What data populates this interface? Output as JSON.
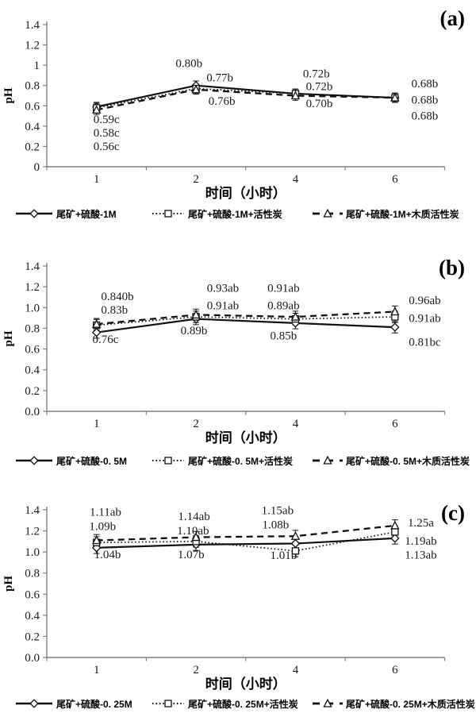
{
  "figure_title": "",
  "chart_data": [
    {
      "type": "line",
      "panel_label": "(a)",
      "xlabel": "时间（小时）",
      "ylabel": "pH",
      "x_categories": [
        "1",
        "2",
        "4",
        "6"
      ],
      "y_tick_labels": [
        "1.4",
        "1.2",
        "1",
        "0.8",
        "0.6",
        "0.4",
        "0.2",
        "0"
      ],
      "ylim": [
        0,
        1.4
      ],
      "grid": false,
      "legend_position": "bottom",
      "error_bar": 0.045,
      "series": [
        {
          "name": "尾矿+硫酸-1M",
          "line": "solid",
          "marker": "diamond",
          "values": [
            0.59,
            0.8,
            0.72,
            0.68
          ]
        },
        {
          "name": "尾矿+硫酸-1M+活性炭",
          "line": "dotted",
          "marker": "square",
          "values": [
            0.58,
            0.77,
            0.72,
            0.68
          ]
        },
        {
          "name": "尾矿+硫酸-1M+木质活性炭",
          "line": "dashed",
          "marker": "triangle",
          "values": [
            0.56,
            0.76,
            0.7,
            0.68
          ]
        }
      ],
      "point_labels": [
        {
          "x": 0.1,
          "y": 0.47,
          "text": "0.59c"
        },
        {
          "x": 0.1,
          "y": 0.335,
          "text": "0.58c"
        },
        {
          "x": 0.1,
          "y": 0.205,
          "text": "0.56c"
        },
        {
          "x": 0.93,
          "y": 1.02,
          "text": "0.80b"
        },
        {
          "x": 1.24,
          "y": 0.88,
          "text": "0.77b"
        },
        {
          "x": 1.26,
          "y": 0.65,
          "text": "0.76b"
        },
        {
          "x": 2.21,
          "y": 0.92,
          "text": "0.72b"
        },
        {
          "x": 2.24,
          "y": 0.795,
          "text": "0.72b"
        },
        {
          "x": 2.24,
          "y": 0.625,
          "text": "0.70b"
        },
        {
          "x": 3.3,
          "y": 0.82,
          "text": "0.68b"
        },
        {
          "x": 3.3,
          "y": 0.66,
          "text": "0.68b"
        },
        {
          "x": 3.3,
          "y": 0.505,
          "text": "0.68b"
        }
      ]
    },
    {
      "type": "line",
      "panel_label": "(b)",
      "xlabel": "时间（小时）",
      "ylabel": "pH",
      "x_categories": [
        "1",
        "2",
        "4",
        "6"
      ],
      "y_tick_labels": [
        "1.4",
        "1.2",
        "1.0",
        "0.8",
        "0.6",
        "0.4",
        "0.2",
        "0.0"
      ],
      "ylim": [
        0,
        1.4
      ],
      "grid": false,
      "legend_position": "bottom",
      "error_bar": 0.055,
      "series": [
        {
          "name": "尾矿+硫酸-0. 5M",
          "line": "solid",
          "marker": "diamond",
          "values": [
            0.76,
            0.89,
            0.85,
            0.81
          ]
        },
        {
          "name": "尾矿+硫酸-0. 5M+活性炭",
          "line": "dotted",
          "marker": "square",
          "values": [
            0.83,
            0.91,
            0.89,
            0.91
          ]
        },
        {
          "name": "尾矿+硫酸-0. 5M+木质活性炭",
          "line": "dashed",
          "marker": "triangle",
          "values": [
            0.84,
            0.93,
            0.91,
            0.96
          ]
        }
      ],
      "point_labels": [
        {
          "x": 0.21,
          "y": 1.11,
          "text": "0.840b"
        },
        {
          "x": 0.18,
          "y": 0.98,
          "text": "0.83b"
        },
        {
          "x": 0.09,
          "y": 0.695,
          "text": "0.76c"
        },
        {
          "x": 1.27,
          "y": 1.19,
          "text": "0.93ab"
        },
        {
          "x": 1.27,
          "y": 1.02,
          "text": "0.91ab"
        },
        {
          "x": 0.98,
          "y": 0.78,
          "text": "0.89b"
        },
        {
          "x": 1.88,
          "y": 1.19,
          "text": "0.91ab"
        },
        {
          "x": 1.88,
          "y": 1.02,
          "text": "0.89ab"
        },
        {
          "x": 1.88,
          "y": 0.73,
          "text": "0.85b"
        },
        {
          "x": 3.3,
          "y": 1.07,
          "text": "0.96ab"
        },
        {
          "x": 3.3,
          "y": 0.9,
          "text": "0.91ab"
        },
        {
          "x": 3.3,
          "y": 0.67,
          "text": "0.81bc"
        }
      ]
    },
    {
      "type": "line",
      "panel_label": "(c)",
      "xlabel": "时间（小时）",
      "ylabel": "pH",
      "x_categories": [
        "1",
        "2",
        "4",
        "6"
      ],
      "y_tick_labels": [
        "1.4",
        "1.2",
        "1.0",
        "0.8",
        "0.6",
        "0.4",
        "0.2",
        "0.0"
      ],
      "ylim": [
        0,
        1.4
      ],
      "grid": false,
      "legend_position": "bottom",
      "error_bar": 0.055,
      "series": [
        {
          "name": "尾矿+硫酸-0. 25M",
          "line": "solid",
          "marker": "diamond",
          "values": [
            1.04,
            1.07,
            1.08,
            1.13
          ]
        },
        {
          "name": "尾矿+硫酸-0. 25M+活性炭",
          "line": "dotted",
          "marker": "square",
          "values": [
            1.09,
            1.1,
            1.01,
            1.19
          ]
        },
        {
          "name": "尾矿+硫酸-0. 25M+木质活性炭",
          "line": "dashed",
          "marker": "triangle",
          "values": [
            1.11,
            1.14,
            1.15,
            1.25
          ]
        }
      ],
      "point_labels": [
        {
          "x": 0.09,
          "y": 1.38,
          "text": "1.11ab"
        },
        {
          "x": 0.06,
          "y": 1.245,
          "text": "1.09b"
        },
        {
          "x": 0.11,
          "y": 0.98,
          "text": "1.04b"
        },
        {
          "x": 0.98,
          "y": 1.34,
          "text": "1.14ab"
        },
        {
          "x": 0.97,
          "y": 1.205,
          "text": "1.10ab"
        },
        {
          "x": 0.95,
          "y": 0.98,
          "text": "1.07b"
        },
        {
          "x": 1.82,
          "y": 1.395,
          "text": "1.15ab"
        },
        {
          "x": 1.8,
          "y": 1.26,
          "text": "1.08b"
        },
        {
          "x": 1.88,
          "y": 0.97,
          "text": "1.01b"
        },
        {
          "x": 3.26,
          "y": 1.28,
          "text": "1.25a"
        },
        {
          "x": 3.26,
          "y": 1.105,
          "text": "1.19ab"
        },
        {
          "x": 3.26,
          "y": 0.975,
          "text": "1.13ab"
        }
      ]
    }
  ],
  "colors": {
    "data": "#111111",
    "axis": "#808080",
    "background": "#ffffff"
  }
}
